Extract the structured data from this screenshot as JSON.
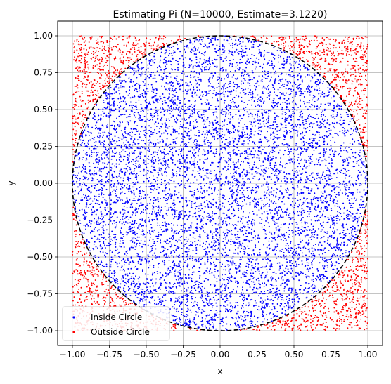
{
  "chart_data": {
    "type": "scatter",
    "title": "Estimating Pi (N=10000, Estimate=3.1220)",
    "xlabel": "x",
    "ylabel": "y",
    "xlim": [
      -1.1,
      1.1
    ],
    "ylim": [
      -1.1,
      1.1
    ],
    "xticks": [
      -1.0,
      -0.75,
      -0.5,
      -0.25,
      0.0,
      0.25,
      0.5,
      0.75,
      1.0
    ],
    "yticks": [
      -1.0,
      -0.75,
      -0.5,
      -0.25,
      0.0,
      0.25,
      0.5,
      0.75,
      1.0
    ],
    "xtick_labels": [
      "−1.00",
      "−0.75",
      "−0.50",
      "−0.25",
      "0.00",
      "0.25",
      "0.50",
      "0.75",
      "1.00"
    ],
    "ytick_labels": [
      "−1.00",
      "−0.75",
      "−0.50",
      "−0.25",
      "0.00",
      "0.25",
      "0.50",
      "0.75",
      "1.00"
    ],
    "grid": true,
    "legend_position": "lower-left",
    "point_count": 10000,
    "series": [
      {
        "name": "Inside Circle",
        "color": "#0000ff",
        "region": "x^2 + y^2 <= 1"
      },
      {
        "name": "Outside Circle",
        "color": "#ff0000",
        "region": "x^2 + y^2 > 1"
      }
    ],
    "circle": {
      "center": [
        0,
        0
      ],
      "radius": 1,
      "style": "dashed",
      "color": "#000000"
    }
  }
}
